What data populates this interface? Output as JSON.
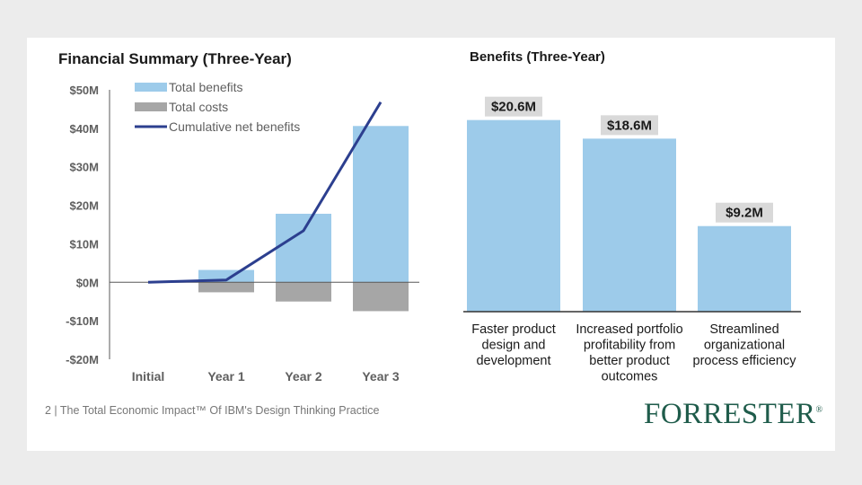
{
  "footer": "2 | The Total Economic Impact™ Of IBM's Design Thinking Practice",
  "logo": {
    "text": "FORRESTER",
    "mark": "®"
  },
  "colors": {
    "benefits": "#9dcbea",
    "costs": "#a6a6a6",
    "cumulative": "#2c3f8f",
    "label_bg": "#d9d9d9",
    "axis": "#595959",
    "text_grey": "#5f5f5f"
  },
  "chart_data": [
    {
      "type": "bar",
      "title": "Financial Summary (Three-Year)",
      "categories": [
        "Initial",
        "Year 1",
        "Year 2",
        "Year 3"
      ],
      "ylim": [
        -20,
        50
      ],
      "yticks": [
        50,
        40,
        30,
        20,
        10,
        0,
        -10,
        -20
      ],
      "ytick_labels": [
        "$50M",
        "$40M",
        "$30M",
        "$20M",
        "$10M",
        "$0M",
        "-$10M",
        "-$20M"
      ],
      "legend": [
        "Total benefits",
        "Total costs",
        "Cumulative net benefits"
      ],
      "legend_position": "top-left",
      "series": [
        {
          "name": "Total benefits",
          "type": "bar",
          "values": [
            0,
            3.2,
            17.8,
            40.6
          ]
        },
        {
          "name": "Total costs",
          "type": "bar",
          "values": [
            0,
            -2.6,
            -5.0,
            -7.5
          ]
        },
        {
          "name": "Cumulative net benefits",
          "type": "line",
          "values": [
            0,
            0.6,
            13.4,
            46.8
          ]
        }
      ]
    },
    {
      "type": "bar",
      "title": "Benefits (Three-Year)",
      "categories": [
        "Faster product design and development",
        "Increased portfolio profitability from better product outcomes",
        "Streamlined organizational process efficiency"
      ],
      "category_lines": [
        [
          "Faster product",
          "design and",
          "development"
        ],
        [
          "Increased portfolio",
          "profitability from",
          "better product",
          "outcomes"
        ],
        [
          "Streamlined",
          "organizational",
          "process efficiency"
        ]
      ],
      "values": [
        20.6,
        18.6,
        9.2
      ],
      "value_labels": [
        "$20.6M",
        "$18.6M",
        "$9.2M"
      ],
      "ylim": [
        0,
        22
      ]
    }
  ]
}
